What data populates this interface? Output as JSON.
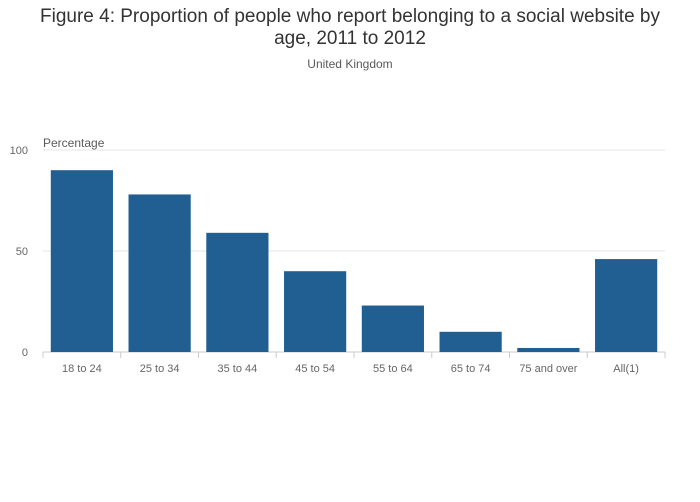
{
  "chart_data": {
    "type": "bar",
    "title_line1": "Figure 4: Proportion of people who report belonging to a social website by",
    "title_line2": "age, 2011 to 2012",
    "subtitle": "United Kingdom",
    "ylabel": "Percentage",
    "xlabel": "",
    "categories": [
      "18 to 24",
      "25 to 34",
      "35 to 44",
      "45 to 54",
      "55 to 64",
      "65 to 74",
      "75 and over",
      "All(1)"
    ],
    "values": [
      90,
      78,
      59,
      40,
      23,
      10,
      2,
      46
    ],
    "ylim": [
      0,
      100
    ],
    "yticks": [
      0,
      50,
      100
    ],
    "grid": true,
    "bar_color": "#215f93"
  }
}
